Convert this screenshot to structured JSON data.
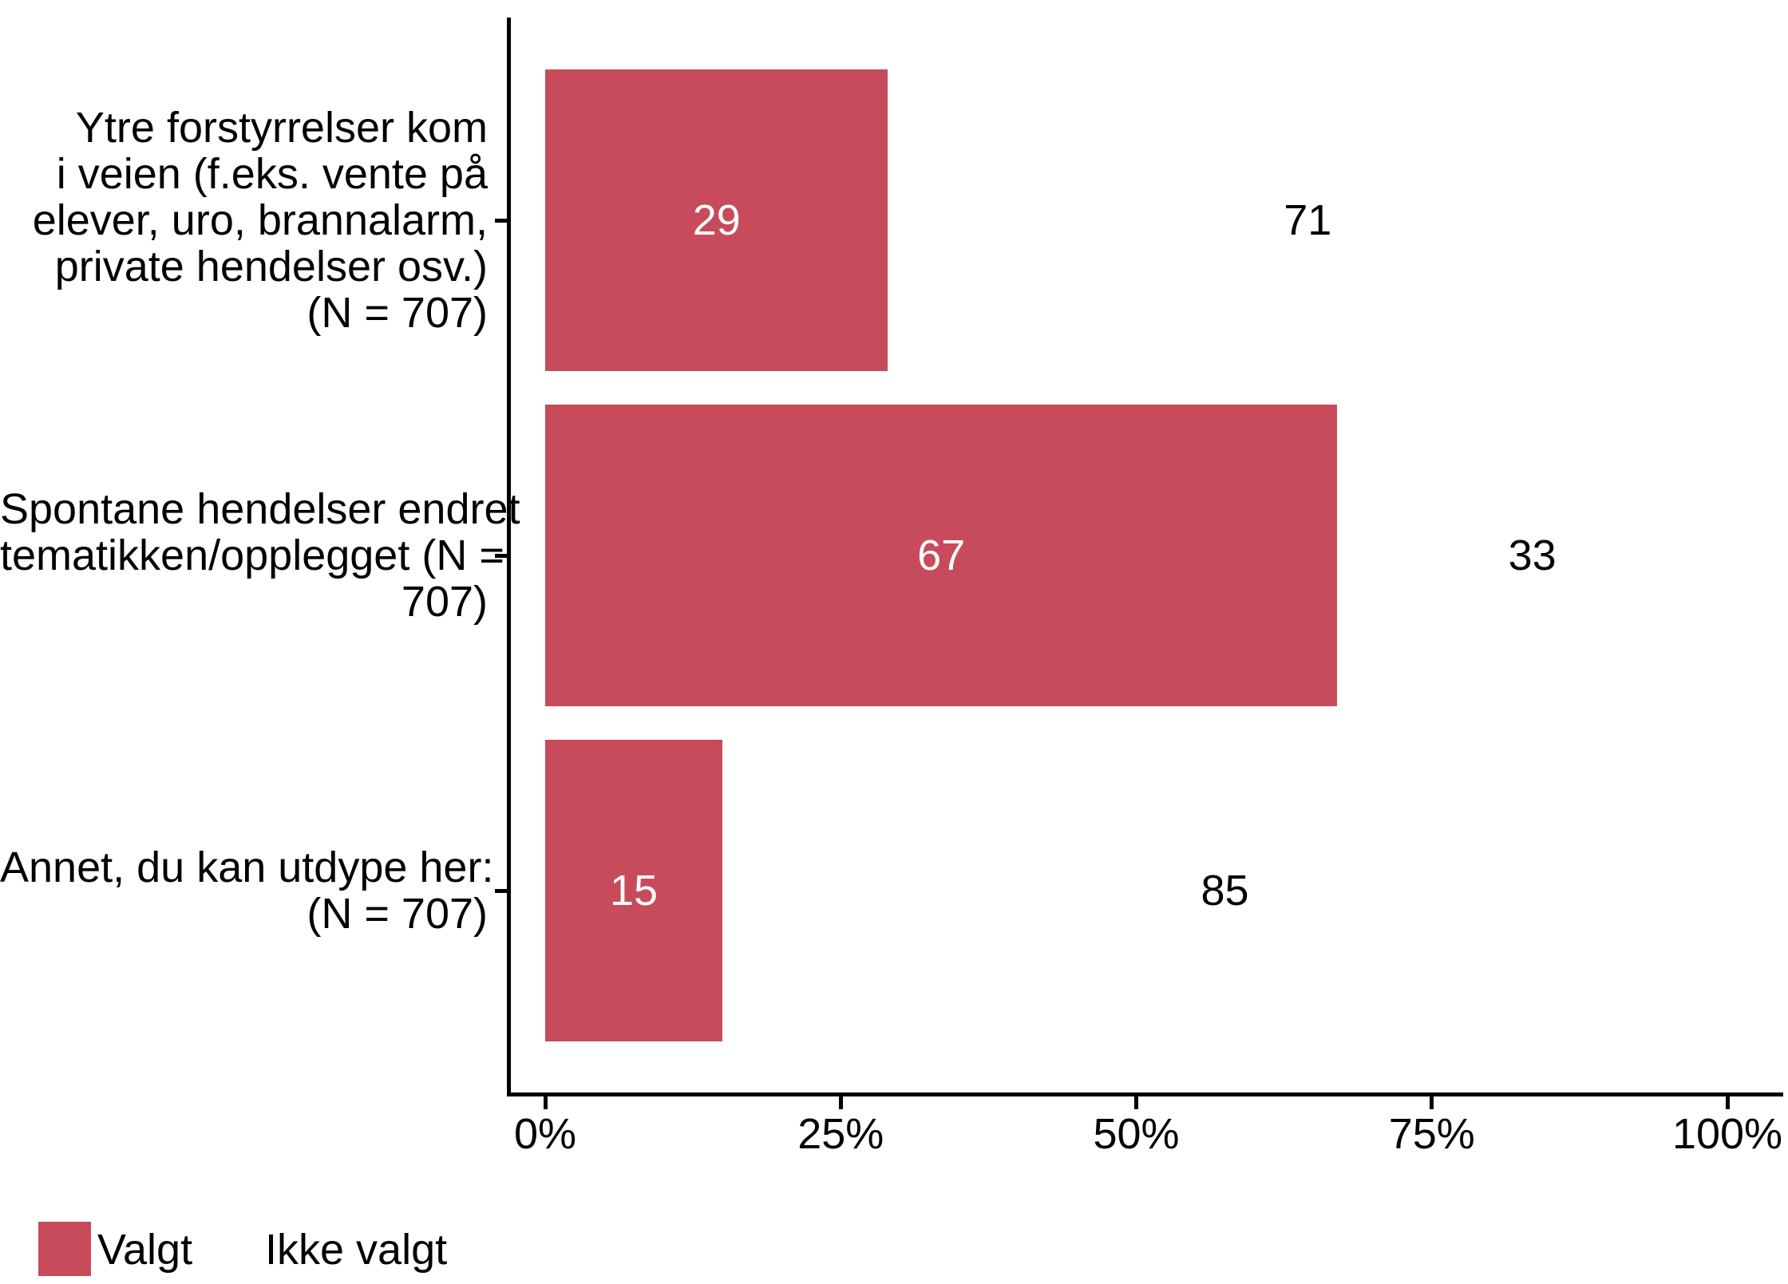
{
  "chart_data": {
    "type": "bar",
    "orientation": "horizontal",
    "stacked": true,
    "title": "",
    "xlabel": "",
    "ylabel": "",
    "categories": [
      "Ytre forstyrrelser kom i veien (f.eks. vente på elever, uro, brannalarm, private hendelser osv.) (N = 707)",
      "Spontane hendelser endret tematikken/opplegget (N = 707)",
      "Annet, du kan utdype her: (N = 707)"
    ],
    "category_lines": [
      [
        "Ytre forstyrrelser kom",
        "i veien (f.eks. vente på",
        "elever, uro, brannalarm,",
        "private hendelser osv.)",
        "(N = 707)"
      ],
      [
        "Spontane hendelser endret",
        "tematikken/opplegget (N =",
        "707)"
      ],
      [
        "Annet, du kan utdype her:",
        "(N = 707)"
      ]
    ],
    "series": [
      {
        "name": "Valgt",
        "values": [
          29,
          67,
          15
        ],
        "color": "#c74b5b",
        "label_color": "#ffffff"
      },
      {
        "name": "Ikke valgt",
        "values": [
          71,
          33,
          85
        ],
        "color": "#ffffff",
        "label_color": "#000000"
      }
    ],
    "x_ticks": [
      "0%",
      "25%",
      "50%",
      "75%",
      "100%"
    ],
    "x_tick_values": [
      0,
      25,
      50,
      75,
      100
    ],
    "xlim": [
      0,
      100
    ],
    "grid": false,
    "legend_position": "bottom",
    "colors": {
      "axis": "#000000",
      "text": "#000000",
      "background": "#ffffff",
      "bar_selected": "#c74b5b",
      "bar_not_selected": "#ffffff"
    }
  }
}
